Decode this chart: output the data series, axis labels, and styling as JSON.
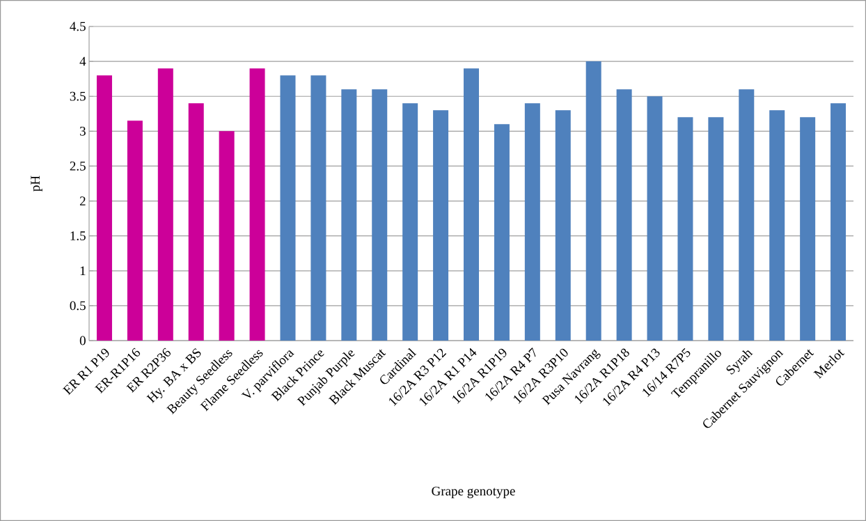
{
  "chart_data": {
    "type": "bar",
    "xlabel": "Grape genotype",
    "ylabel": "pH",
    "categories": [
      "ER R1 P19",
      "ER-R1P16",
      "ER R2P36",
      "Hy. BA x BS",
      "Beauty Seedless",
      "Flame Seedless",
      "V. parviflora",
      "Black Prince",
      "Punjab Purple",
      "Black Muscat",
      "Cardinal",
      "16/2A R3 P12",
      "16/2A R1 P14",
      "16/2A R1P19",
      "16/2A R4 P7",
      "16/2A R3P10",
      "Pusa Navrang",
      "16/2A R1P18",
      "16/2A R4 P13",
      "16/14 R7P5",
      "Tempranillo",
      "Syrah",
      "Cabernet Sauvignon",
      "Cabernet",
      "Merlot"
    ],
    "values": [
      3.8,
      3.15,
      3.9,
      3.4,
      3.0,
      3.9,
      3.8,
      3.8,
      3.6,
      3.6,
      3.4,
      3.3,
      3.9,
      3.1,
      3.4,
      3.3,
      4.0,
      3.6,
      3.5,
      3.2,
      3.2,
      3.6,
      3.3,
      3.2,
      3.4
    ],
    "colors": [
      "#cc0099",
      "#cc0099",
      "#cc0099",
      "#cc0099",
      "#cc0099",
      "#cc0099",
      "#4f81bd",
      "#4f81bd",
      "#4f81bd",
      "#4f81bd",
      "#4f81bd",
      "#4f81bd",
      "#4f81bd",
      "#4f81bd",
      "#4f81bd",
      "#4f81bd",
      "#4f81bd",
      "#4f81bd",
      "#4f81bd",
      "#4f81bd",
      "#4f81bd",
      "#4f81bd",
      "#4f81bd",
      "#4f81bd",
      "#4f81bd"
    ],
    "ylim": [
      0,
      4.5
    ],
    "yticks": [
      0,
      0.5,
      1,
      1.5,
      2,
      2.5,
      3,
      3.5,
      4,
      4.5
    ],
    "grid": "y"
  }
}
